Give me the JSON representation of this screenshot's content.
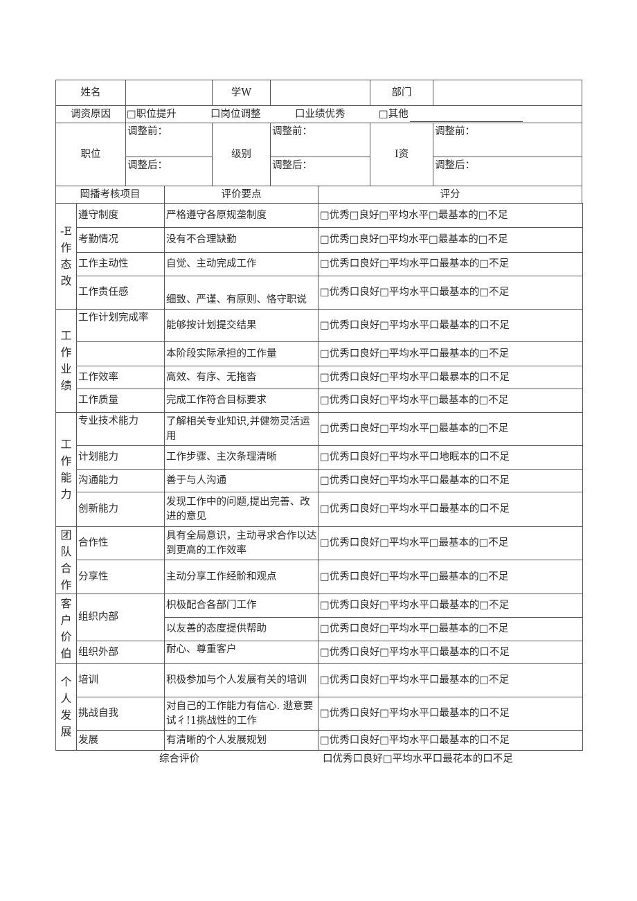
{
  "header": {
    "name_label": "姓名",
    "id_label": "学W",
    "dept_label": "部门",
    "reason_label": "调资原因",
    "reasons": [
      "□职位提升",
      "口岗位调整",
      "口业绩优秀",
      "□其他"
    ],
    "position_label": "职位",
    "level_label": "级别",
    "salary_label": "I资",
    "before_label": "调整前：",
    "after_label": "调整后："
  },
  "columns": {
    "item": "岡播考核项目",
    "key": "评价要点",
    "score": "评分"
  },
  "groups": [
    {
      "label": [
        "-E",
        "作",
        "态",
        "改"
      ],
      "rows": [
        {
          "item": "遵守制度",
          "key": "严格遵守各原规垄制度",
          "rating": "□优秀□良好□平均水平□最基本的□不足"
        },
        {
          "item": "考勤情况",
          "key": "没有不合理缺勤",
          "rating": "□优秀□良好□平均水平□最基本的□不足"
        },
        {
          "item": "工作主动性",
          "key": "自觉、主动完成工作",
          "rating": "□优秀口良好□平均水平口最基本的□不足"
        },
        {
          "item": "工作责任感",
          "key": "细致、严谨、有原则、恪守职说",
          "rating": "□优秀口良好□平均水平口最基本的□不足"
        }
      ]
    },
    {
      "label": [
        "工",
        "作",
        "业",
        "绩"
      ],
      "rows": [
        {
          "item": "工作计划完成率",
          "key": "能够按计划提交结果",
          "rating": "□优秀口良好□平均水平口最基本的口不足"
        },
        {
          "item": "",
          "key": "本阶段实际承担的工作量",
          "rating": "□优秀口良好□平均水平口最基本的□不足"
        },
        {
          "item": "工作效率",
          "key": "高效、有序、无拖沓",
          "rating": "□优秀口良好□平均水平口最暴本的口不足"
        },
        {
          "item": "工作质量",
          "key": "完成工作符合目标要求",
          "rating": "□优秀口良好□平均水平□最基本的□不足"
        }
      ]
    },
    {
      "label": [
        "工",
        "作",
        "能",
        "力"
      ],
      "rows": [
        {
          "item": "专业技术能力",
          "key": "了解相关专业知识,并健笏灵活运用",
          "rating": "□优秀口良好□平均水平□最基本的□不足"
        },
        {
          "item": "计划能力",
          "key": "工作步骤、主次条理清晰",
          "rating": "□优秀口良好□平均水平口地眠本的口不足"
        },
        {
          "item": "沟通能力",
          "key": "善于与人沟通",
          "rating": "□优秀口良好□平均水平口最基本的口不足"
        },
        {
          "item": "创新能力",
          "key": "发现工作中的问题,提出完善、改进的意见",
          "rating": "□优秀口良好□平均水平口最基本的口不足"
        }
      ]
    },
    {
      "label": [
        "团",
        "队",
        "合",
        "作"
      ],
      "rows": [
        {
          "item": "合作性",
          "key": "具有全局意识，主动寻求合作以达到更高的工作效率",
          "rating": "□优秀口良好□平均水平□最基本的□不足"
        },
        {
          "item": "分享性",
          "key": "主动分享工作经骱和观点",
          "rating": "□优秀口良好□平均水平□最基本的□不足"
        }
      ]
    },
    {
      "label": [
        "客",
        "户",
        "价",
        "伯"
      ],
      "rows": [
        {
          "item": "组织内部",
          "key": "枳极配合各部门工作",
          "rating": "□优秀口良好□平均水平口最基本的□不足"
        },
        {
          "item": null,
          "key": "以友善的态度提供帮助",
          "rating": "□优秀口良好□平均水平□最基本的□不足"
        },
        {
          "item": "组织外部",
          "key": "耐心、尊重客户",
          "rating": "□优秀口良好□平均水平口最基本的口不足"
        }
      ]
    },
    {
      "label": [
        "个",
        "人",
        "发",
        "展"
      ],
      "rows": [
        {
          "item": "培训",
          "key": "积极参加与个人发展有关的培训",
          "rating": "□优秀口良好□平均水平口最基本的□不足"
        },
        {
          "item": "挑战自我",
          "key": "对自己的工作能力有信心. 逖意要试彳!1挑战性的工作",
          "rating": "□优秀口良好□平均水平口最基本的口不足"
        },
        {
          "item": "发展",
          "key": "有清晰的个人发展规划",
          "rating": "□优秀口良好□平均水平口最基本的口不足"
        }
      ]
    }
  ],
  "summary": {
    "label": "综合评价",
    "rating": "口优秀口良好□平均水平口最花本的口不足"
  }
}
